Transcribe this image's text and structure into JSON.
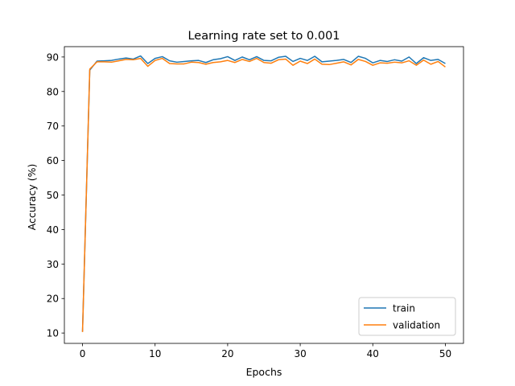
{
  "chart_data": {
    "type": "line",
    "title": "Learning rate set to 0.001",
    "xlabel": "Epochs",
    "ylabel": "Accuracy (%)",
    "xlim": [
      -2.5,
      52.5
    ],
    "ylim": [
      7,
      93
    ],
    "xticks": [
      0,
      10,
      20,
      30,
      40,
      50
    ],
    "yticks": [
      10,
      20,
      30,
      40,
      50,
      60,
      70,
      80,
      90
    ],
    "grid": false,
    "legend_position": "lower right",
    "x": [
      0,
      1,
      2,
      3,
      4,
      5,
      6,
      7,
      8,
      9,
      10,
      11,
      12,
      13,
      14,
      15,
      16,
      17,
      18,
      19,
      20,
      21,
      22,
      23,
      24,
      25,
      26,
      27,
      28,
      29,
      30,
      31,
      32,
      33,
      34,
      35,
      36,
      37,
      38,
      39,
      40,
      41,
      42,
      43,
      44,
      45,
      46,
      47,
      48,
      49,
      50
    ],
    "series": [
      {
        "name": "train",
        "color": "#1f77b4",
        "values": [
          10.4,
          86.2,
          88.8,
          88.9,
          89.0,
          89.4,
          89.7,
          89.4,
          90.3,
          88.1,
          89.6,
          90.1,
          88.9,
          88.5,
          88.7,
          88.9,
          89.0,
          88.4,
          89.2,
          89.5,
          90.1,
          89.0,
          90.0,
          89.2,
          90.1,
          89.0,
          88.9,
          89.9,
          90.2,
          88.7,
          89.6,
          89.0,
          90.2,
          88.6,
          88.8,
          89.0,
          89.3,
          88.4,
          90.2,
          89.6,
          88.3,
          89.0,
          88.7,
          89.2,
          88.8,
          90.0,
          88.1,
          89.8,
          89.0,
          89.3,
          88.1
        ]
      },
      {
        "name": "validation",
        "color": "#ff7f0e",
        "values": [
          10.3,
          86.5,
          88.6,
          88.6,
          88.5,
          88.9,
          89.3,
          89.2,
          89.6,
          87.3,
          89.0,
          89.6,
          88.1,
          88.0,
          88.0,
          88.5,
          88.4,
          87.9,
          88.4,
          88.6,
          89.0,
          88.4,
          89.3,
          88.7,
          89.6,
          88.4,
          88.2,
          89.2,
          89.4,
          87.6,
          88.8,
          88.1,
          89.4,
          87.9,
          87.8,
          88.2,
          88.6,
          87.7,
          89.3,
          88.7,
          87.6,
          88.3,
          88.2,
          88.5,
          88.3,
          88.9,
          87.6,
          89.1,
          87.9,
          88.7,
          87.1
        ]
      }
    ]
  }
}
